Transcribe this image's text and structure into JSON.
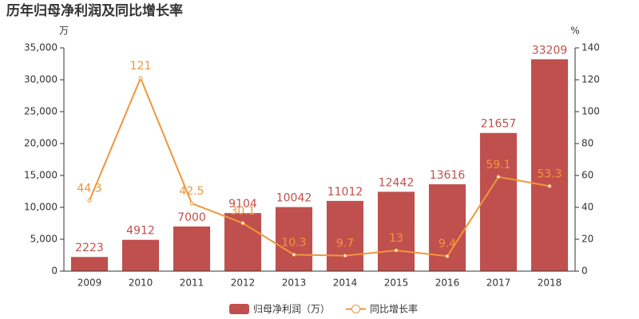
{
  "chart_data": {
    "type": "bar",
    "title": "历年归母净利润及同比增长率",
    "y_unit": "万",
    "y2_unit": "%",
    "categories": [
      "2009",
      "2010",
      "2011",
      "2012",
      "2013",
      "2014",
      "2015",
      "2016",
      "2017",
      "2018"
    ],
    "series": [
      {
        "name": "归母净利润（万）",
        "type": "bar",
        "color": "#c0504d",
        "values": [
          2223,
          4912,
          7000,
          9104,
          10042,
          11012,
          12442,
          13616,
          21657,
          33209
        ]
      },
      {
        "name": "同比增长率",
        "type": "line",
        "color": "#f0963c",
        "axis": "y2",
        "values": [
          44.3,
          121,
          42.5,
          30.1,
          10.3,
          9.7,
          13,
          9.4,
          59.1,
          53.3
        ]
      }
    ],
    "ylim": [
      0,
      35000
    ],
    "yticks": [
      0,
      {
        "value": 5000,
        "label": "5,000"
      },
      {
        "value": 10000,
        "label": "10,000"
      },
      {
        "value": 15000,
        "label": "15,000"
      },
      {
        "value": 20000,
        "label": "20,000"
      },
      {
        "value": 25000,
        "label": "25,000"
      },
      {
        "value": 30000,
        "label": "30,000"
      },
      {
        "value": 35000,
        "label": "35,000"
      }
    ],
    "y2lim": [
      0,
      140
    ],
    "y2ticks": [
      0,
      20,
      40,
      60,
      80,
      100,
      120,
      140
    ],
    "grid": false
  }
}
